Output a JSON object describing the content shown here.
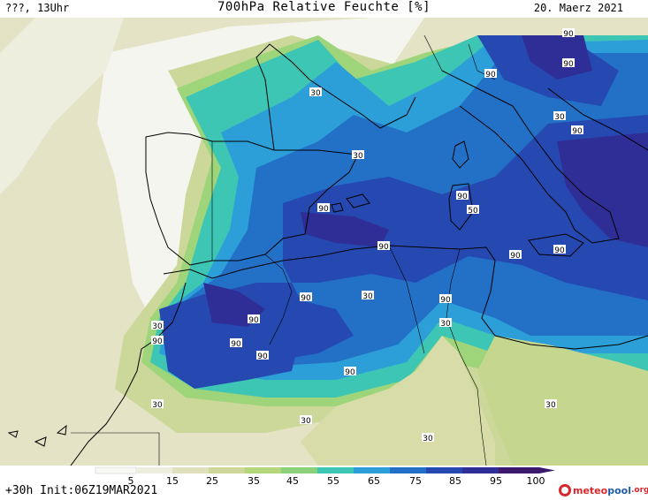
{
  "header": {
    "left": "???, 13Uhr",
    "title": "700hPa Relative Feuchte [%]",
    "date": "20. Maerz 2021"
  },
  "footer": {
    "init": "+30h Init:06Z19MAR2021"
  },
  "logo": {
    "part1": "meteo",
    "part2": "pool",
    "part3": ".org"
  },
  "colors": {
    "low": "#f7f7f4",
    "c15": "#eeeede",
    "c25": "#e0e0bd",
    "c35": "#cfd79a",
    "c45": "#b4d77c",
    "c50": "#8cd17a",
    "c55": "#3ec6b4",
    "c65": "#2c9ed8",
    "c75": "#2370c7",
    "c85": "#2549b0",
    "c95": "#2f2d96",
    "c100": "#3b1a6d"
  },
  "colorbar": {
    "ticks": [
      "5",
      "15",
      "25",
      "35",
      "45",
      "55",
      "65",
      "75",
      "85",
      "95",
      "100"
    ]
  },
  "contour_labels": [
    "90",
    "90",
    "90",
    "30",
    "90",
    "30",
    "30",
    "90",
    "90",
    "50",
    "90",
    "90",
    "90",
    "90",
    "90",
    "90",
    "30",
    "90",
    "30",
    "90",
    "30",
    "30",
    "90",
    "90",
    "30",
    "30",
    "30",
    "30",
    "30",
    "90"
  ]
}
